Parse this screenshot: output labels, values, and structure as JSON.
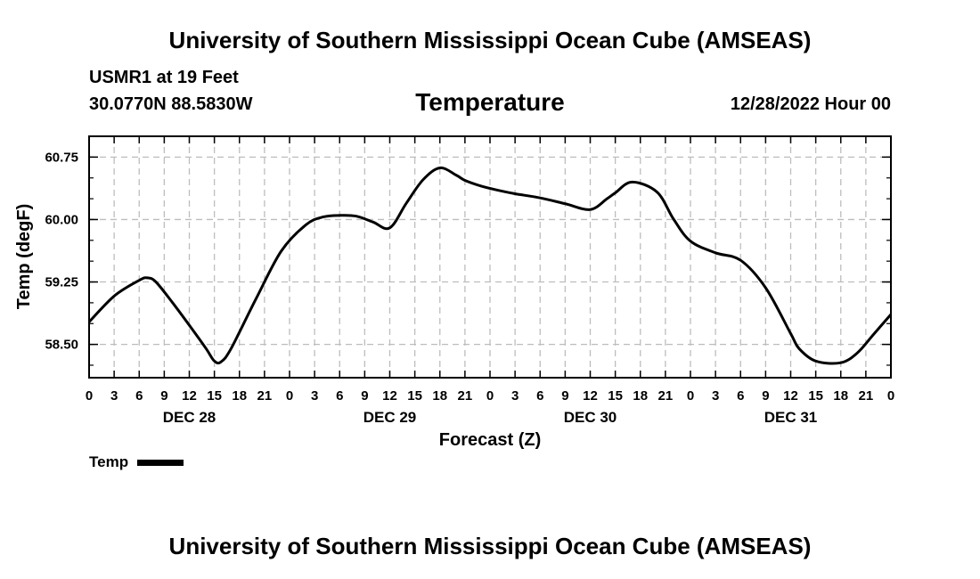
{
  "header": {
    "title": "University of Southern Mississippi Ocean Cube (AMSEAS)",
    "station": "USMR1 at 19 Feet",
    "coords": "30.0770N  88.5830W",
    "run_date": "12/28/2022 Hour 00"
  },
  "footer": {
    "title": "University of Southern Mississippi Ocean Cube (AMSEAS)"
  },
  "legend": {
    "label": "Temp"
  },
  "chart_data": {
    "type": "line",
    "title": "Temperature",
    "xlabel": "Forecast (Z)",
    "ylabel": "Temp (degF)",
    "xlim": [
      0,
      96
    ],
    "ylim": [
      58.1,
      61.0
    ],
    "yticks": [
      58.5,
      59.25,
      60.0,
      60.75
    ],
    "ytick_labels": [
      "58.50",
      "59.25",
      "60.00",
      "60.75"
    ],
    "xtick_step": 3,
    "xtick_labels": [
      "0",
      "3",
      "6",
      "9",
      "12",
      "15",
      "18",
      "21",
      "0",
      "3",
      "6",
      "9",
      "12",
      "15",
      "18",
      "21",
      "0",
      "3",
      "6",
      "9",
      "12",
      "15",
      "18",
      "21",
      "0",
      "3",
      "6",
      "9",
      "12",
      "15",
      "18",
      "21",
      "0"
    ],
    "day_labels": [
      {
        "hour": 12,
        "label": "DEC 28"
      },
      {
        "hour": 36,
        "label": "DEC 29"
      },
      {
        "hour": 60,
        "label": "DEC 30"
      },
      {
        "hour": 84,
        "label": "DEC 31"
      }
    ],
    "series": [
      {
        "name": "Temp",
        "color": "#000000",
        "x": [
          0,
          3,
          6,
          7,
          8,
          10,
          12,
          14,
          15,
          15.8,
          17,
          20,
          23,
          26,
          28,
          30,
          32,
          34,
          36,
          38,
          40,
          42,
          44,
          45,
          47,
          49,
          51,
          54,
          57,
          60,
          62,
          63,
          65,
          68,
          70,
          72,
          75,
          78,
          81,
          84,
          85,
          87,
          90,
          92,
          94,
          96
        ],
        "values": [
          58.77,
          59.08,
          59.27,
          59.3,
          59.25,
          59.0,
          58.73,
          58.45,
          58.3,
          58.29,
          58.45,
          59.05,
          59.62,
          59.94,
          60.03,
          60.05,
          60.04,
          59.97,
          59.9,
          60.2,
          60.48,
          60.62,
          60.53,
          60.47,
          60.4,
          60.35,
          60.31,
          60.26,
          60.19,
          60.12,
          60.25,
          60.32,
          60.45,
          60.33,
          60.0,
          59.74,
          59.6,
          59.51,
          59.18,
          58.63,
          58.45,
          58.3,
          58.28,
          58.4,
          58.63,
          58.86
        ]
      }
    ]
  }
}
